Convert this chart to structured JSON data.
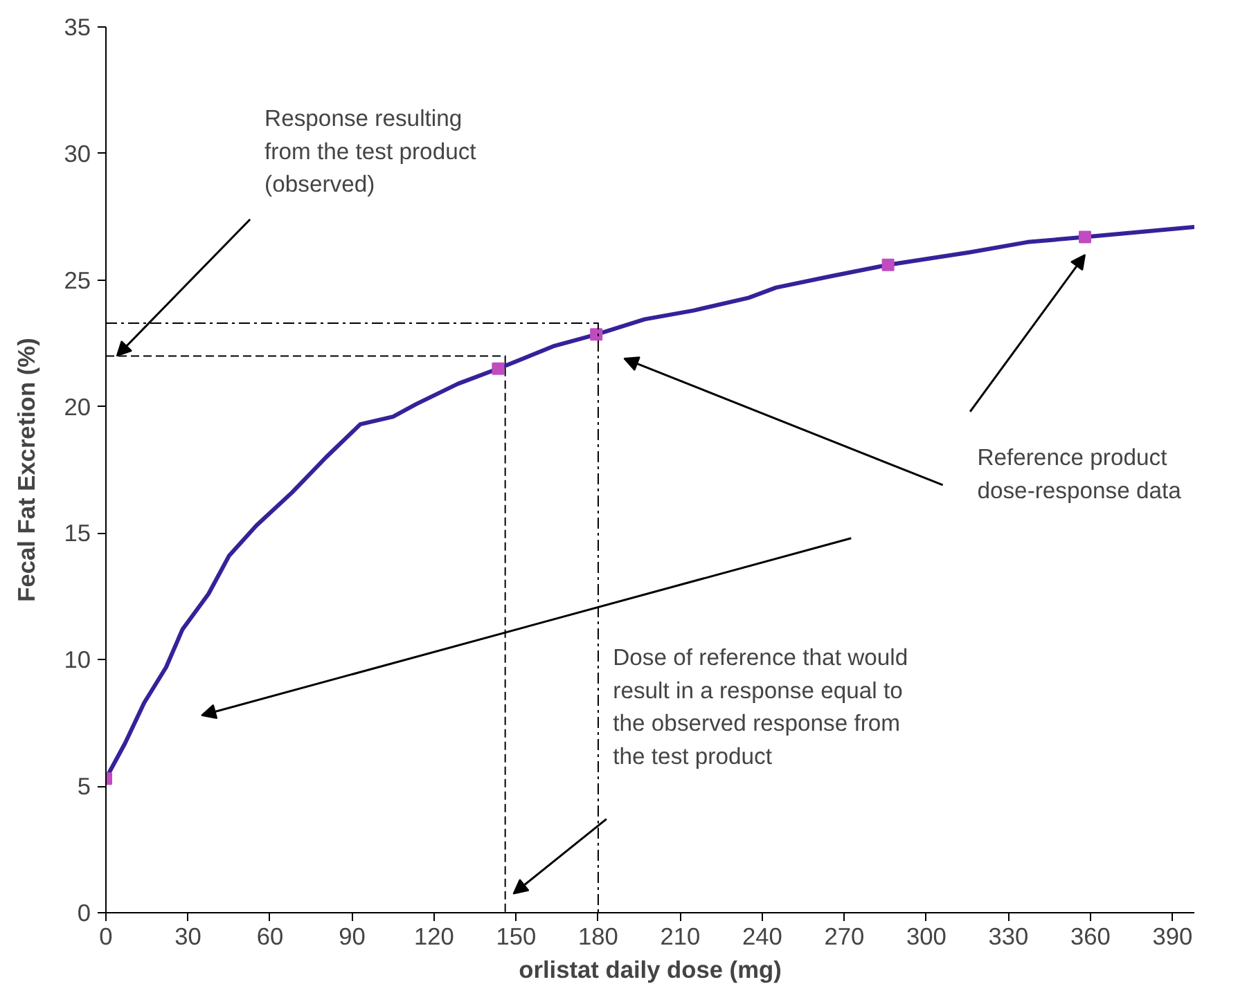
{
  "chart_data": {
    "type": "line",
    "xlabel": "orlistat daily dose (mg)",
    "ylabel": "Fecal Fat Excretion (%)",
    "xlim": [
      0,
      398
    ],
    "ylim": [
      0,
      35
    ],
    "xticks": [
      0,
      30,
      60,
      90,
      120,
      150,
      180,
      210,
      240,
      270,
      300,
      330,
      360,
      390
    ],
    "yticks": [
      0,
      5,
      10,
      15,
      20,
      25,
      30,
      35
    ],
    "grid": false,
    "series": [
      {
        "color": "#35229a",
        "marker": "none",
        "line_style": "solid",
        "x": [
          0,
          7,
          14,
          22,
          28,
          37.5,
          45,
          55,
          68,
          80.5,
          93,
          105,
          113.5,
          128.7,
          143.4,
          164,
          179.3,
          197,
          215,
          235,
          245,
          265,
          286,
          316,
          337,
          358,
          398
        ],
        "values": [
          5.3,
          6.7,
          8.3,
          9.7,
          11.2,
          12.6,
          14.1,
          15.3,
          16.6,
          18.0,
          19.3,
          19.6,
          20.1,
          20.9,
          21.5,
          22.4,
          22.85,
          23.45,
          23.8,
          24.3,
          24.7,
          25.15,
          25.6,
          26.1,
          26.5,
          26.7,
          27.1
        ]
      },
      {
        "type": "scatter",
        "color": "#c04cc0",
        "marker": "square",
        "x": [
          0,
          143.4,
          179.3,
          286,
          358
        ],
        "values": [
          5.3,
          21.5,
          22.85,
          25.6,
          26.7
        ]
      },
      {
        "type": "line",
        "color": "#000000",
        "marker": "none",
        "line_style": "dashed",
        "x": [
          0,
          146,
          146
        ],
        "values": [
          22,
          22,
          0
        ]
      },
      {
        "type": "line",
        "color": "#000000",
        "marker": "none",
        "line_style": "dashdot",
        "x": [
          0,
          180,
          180
        ],
        "values": [
          23.3,
          23.3,
          0
        ]
      }
    ],
    "annotations": [
      {
        "text": "Response resulting\nfrom the test product\n(observed)",
        "x": 4,
        "y": 22
      },
      "Reference product\ndose-response data",
      "Dose of reference that would\nresult in a response equal to\nthe observed response from\nthe test product"
    ]
  }
}
